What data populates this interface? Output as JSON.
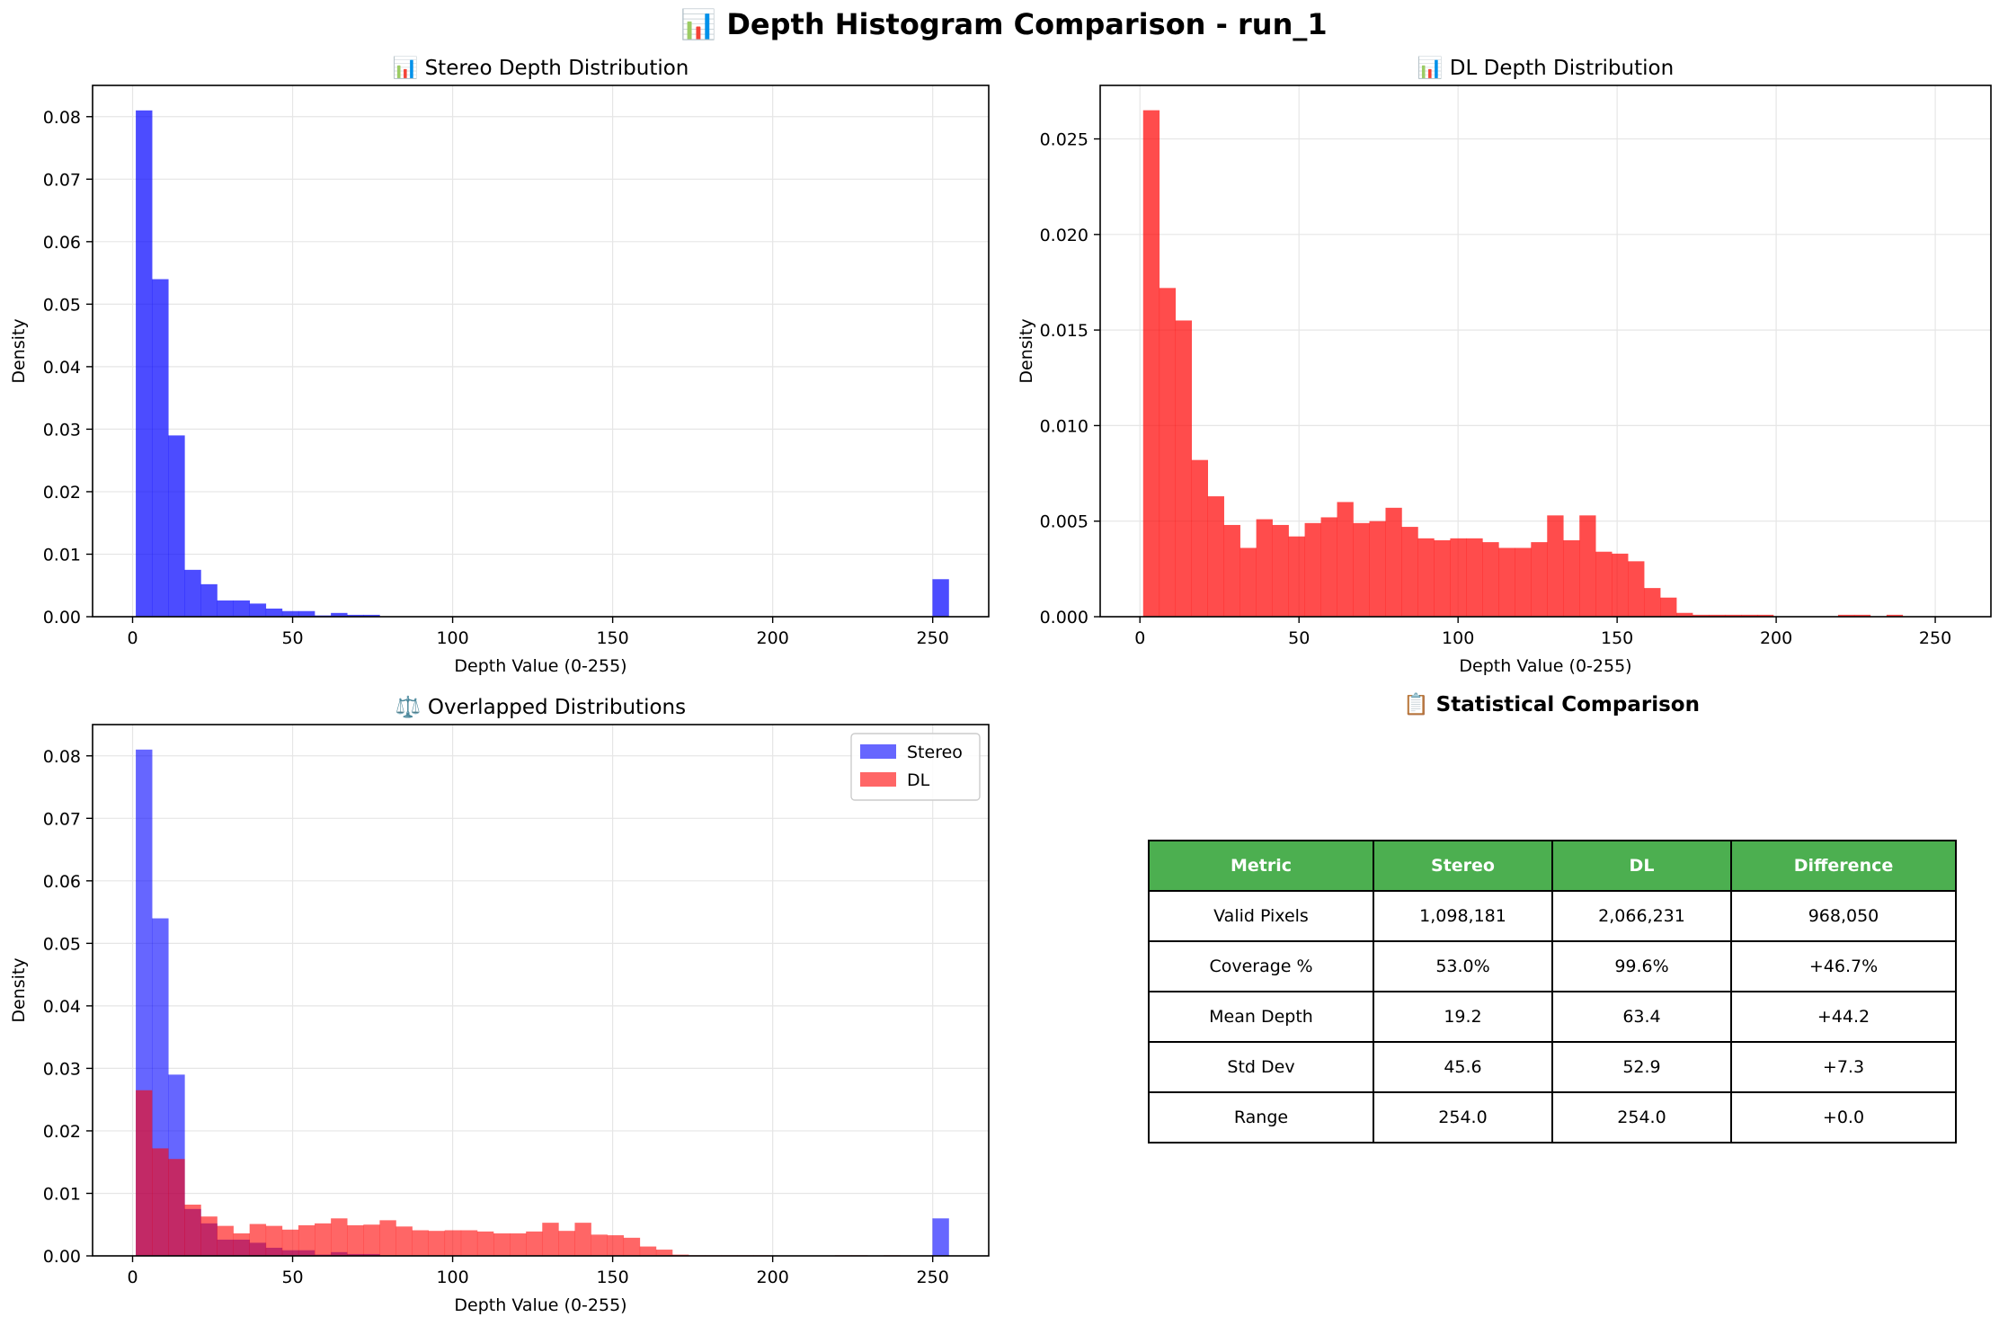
{
  "suptitle": "📊 Depth Histogram Comparison - run_1",
  "colors": {
    "stereo": "#0000ff",
    "dl": "#ff0000",
    "header": "#4caf50"
  },
  "chart_data": [
    {
      "id": "stereo",
      "type": "bar",
      "title": "📊 Stereo Depth Distribution",
      "xlabel": "Depth Value (0-255)",
      "ylabel": "Density",
      "xlim": [
        -12.5,
        267.5
      ],
      "ylim": [
        0,
        0.085
      ],
      "xticks": [
        0,
        50,
        100,
        150,
        200,
        250
      ],
      "yticks": [
        0.0,
        0.01,
        0.02,
        0.03,
        0.04,
        0.05,
        0.06,
        0.07,
        0.08
      ],
      "ytick_decimals": 2,
      "grid": true,
      "bin_start": 1,
      "bin_width": 5.08,
      "series": [
        {
          "values": [
            0.081,
            0.054,
            0.029,
            0.0075,
            0.0052,
            0.0026,
            0.0026,
            0.0021,
            0.0013,
            0.0009,
            0.0009,
            0.0002,
            0.0006,
            0.0003,
            0.0003,
            0,
            0,
            0,
            0,
            0,
            0,
            0,
            0,
            0,
            0,
            0,
            0,
            0,
            0,
            0,
            0,
            0,
            0,
            0,
            0,
            0,
            0,
            0,
            0,
            0,
            0,
            0,
            0,
            0,
            0,
            0,
            0,
            0,
            0,
            0.006
          ]
        }
      ]
    },
    {
      "id": "dl",
      "type": "bar",
      "title": "📊 DL Depth Distribution",
      "xlabel": "Depth Value (0-255)",
      "ylabel": "Density",
      "xlim": [
        -12.5,
        267.5
      ],
      "ylim": [
        0,
        0.0278
      ],
      "xticks": [
        0,
        50,
        100,
        150,
        200,
        250
      ],
      "yticks": [
        0.0,
        0.005,
        0.01,
        0.015,
        0.02,
        0.025
      ],
      "ytick_decimals": 3,
      "grid": true,
      "bin_start": 1,
      "bin_width": 5.08,
      "series": [
        {
          "values": [
            0.0265,
            0.0172,
            0.0155,
            0.0082,
            0.0063,
            0.0048,
            0.0036,
            0.0051,
            0.0048,
            0.0042,
            0.0049,
            0.0052,
            0.006,
            0.0049,
            0.005,
            0.0057,
            0.0047,
            0.0041,
            0.004,
            0.0041,
            0.0041,
            0.0039,
            0.0036,
            0.0036,
            0.0039,
            0.0053,
            0.004,
            0.0053,
            0.0034,
            0.0033,
            0.0029,
            0.0015,
            0.001,
            0.0002,
            0.0001,
            0.0001,
            0.0001,
            0.0001,
            0.0001,
            0,
            0,
            0,
            0,
            0.0001,
            0.0001,
            0,
            0.0001,
            0,
            0,
            0
          ]
        }
      ]
    },
    {
      "id": "overlap",
      "type": "bar",
      "title": "⚖️ Overlapped Distributions",
      "xlabel": "Depth Value (0-255)",
      "ylabel": "Density",
      "xlim": [
        -12.5,
        267.5
      ],
      "ylim": [
        0,
        0.085
      ],
      "xticks": [
        0,
        50,
        100,
        150,
        200,
        250
      ],
      "yticks": [
        0.0,
        0.01,
        0.02,
        0.03,
        0.04,
        0.05,
        0.06,
        0.07,
        0.08
      ],
      "ytick_decimals": 2,
      "grid": true,
      "legend": "top-right",
      "bin_start": 1,
      "bin_width": 5.08,
      "series": [
        {
          "name": "Stereo",
          "values": [
            0.081,
            0.054,
            0.029,
            0.0075,
            0.0052,
            0.0026,
            0.0026,
            0.0021,
            0.0013,
            0.0009,
            0.0009,
            0.0002,
            0.0006,
            0.0003,
            0.0003,
            0,
            0,
            0,
            0,
            0,
            0,
            0,
            0,
            0,
            0,
            0,
            0,
            0,
            0,
            0,
            0,
            0,
            0,
            0,
            0,
            0,
            0,
            0,
            0,
            0,
            0,
            0,
            0,
            0,
            0,
            0,
            0,
            0,
            0,
            0.006
          ]
        },
        {
          "name": "DL",
          "values": [
            0.0265,
            0.0172,
            0.0155,
            0.0082,
            0.0063,
            0.0048,
            0.0036,
            0.0051,
            0.0048,
            0.0042,
            0.0049,
            0.0052,
            0.006,
            0.0049,
            0.005,
            0.0057,
            0.0047,
            0.0041,
            0.004,
            0.0041,
            0.0041,
            0.0039,
            0.0036,
            0.0036,
            0.0039,
            0.0053,
            0.004,
            0.0053,
            0.0034,
            0.0033,
            0.0029,
            0.0015,
            0.001,
            0.0002,
            0.0001,
            0.0001,
            0.0001,
            0.0001,
            0.0001,
            0,
            0,
            0,
            0,
            0.0001,
            0.0001,
            0,
            0.0001,
            0,
            0,
            0
          ]
        }
      ]
    },
    {
      "id": "stats",
      "type": "table",
      "title": "📋 Statistical Comparison",
      "columns": [
        "Metric",
        "Stereo",
        "DL",
        "Difference"
      ],
      "rows": [
        [
          "Valid Pixels",
          "1,098,181",
          "2,066,231",
          "968,050"
        ],
        [
          "Coverage %",
          "53.0%",
          "99.6%",
          "+46.7%"
        ],
        [
          "Mean Depth",
          "19.2",
          "63.4",
          "+44.2"
        ],
        [
          "Std Dev",
          "45.6",
          "52.9",
          "+7.3"
        ],
        [
          "Range",
          "254.0",
          "254.0",
          "+0.0"
        ]
      ]
    }
  ]
}
